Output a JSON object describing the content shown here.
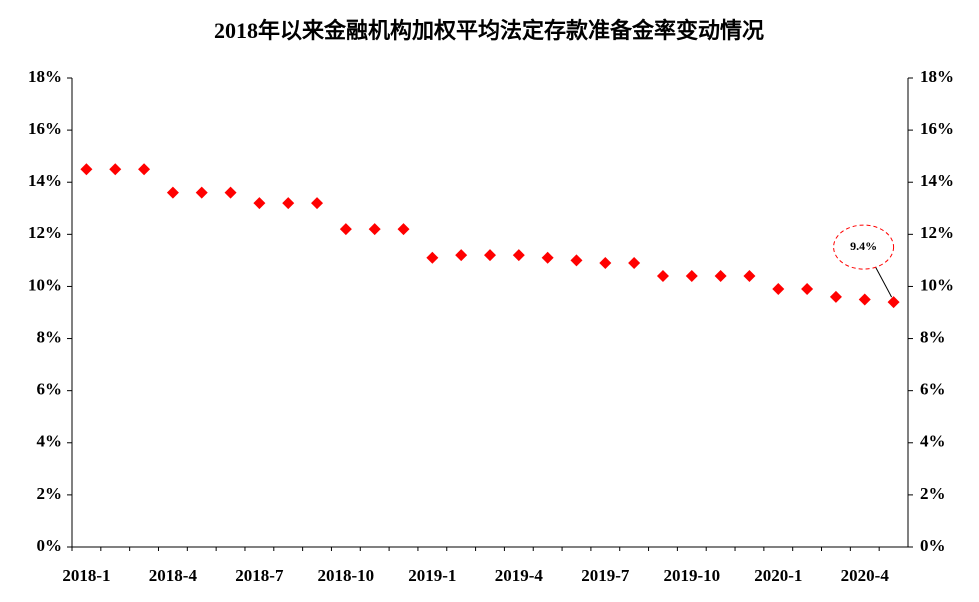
{
  "chart_data": {
    "type": "line",
    "title": "2018年以来金融机构加权平均法定存款准备金率变动情况",
    "categories": [
      "2018-1",
      null,
      null,
      "2018-4",
      null,
      null,
      "2018-7",
      null,
      null,
      "2018-10",
      null,
      null,
      "2019-1",
      null,
      null,
      "2019-4",
      null,
      null,
      "2019-7",
      null,
      null,
      "2019-10",
      null,
      null,
      "2020-1",
      null,
      null,
      "2020-4",
      null
    ],
    "series": [
      {
        "name": "加权平均法定存款准备金率",
        "color": "#0000ff",
        "marker_color": "#ff0000",
        "values": [
          14.5,
          14.5,
          14.5,
          13.6,
          13.6,
          13.6,
          13.2,
          13.2,
          13.2,
          12.2,
          12.2,
          12.2,
          11.1,
          11.2,
          11.2,
          11.2,
          11.1,
          11.0,
          10.9,
          10.9,
          10.4,
          10.4,
          10.4,
          10.4,
          9.9,
          9.9,
          9.6,
          9.5,
          9.4
        ]
      }
    ],
    "annotation": "9.4%",
    "ylim": [
      0,
      18
    ],
    "yticks": [
      {
        "value": 0,
        "label": "0%"
      },
      {
        "value": 2,
        "label": "2%"
      },
      {
        "value": 4,
        "label": "4%"
      },
      {
        "value": 6,
        "label": "6%"
      },
      {
        "value": 8,
        "label": "8%"
      },
      {
        "value": 10,
        "label": "10%"
      },
      {
        "value": 12,
        "label": "12%"
      },
      {
        "value": 14,
        "label": "14%"
      },
      {
        "value": 16,
        "label": "16%"
      },
      {
        "value": 18,
        "label": "18%"
      }
    ],
    "y2lim": [
      0,
      18
    ],
    "y2ticks": [
      {
        "value": 0,
        "label": "0%"
      },
      {
        "value": 2,
        "label": "2%"
      },
      {
        "value": 4,
        "label": "4%"
      },
      {
        "value": 6,
        "label": "6%"
      },
      {
        "value": 8,
        "label": "8%"
      },
      {
        "value": 10,
        "label": "10%"
      },
      {
        "value": 12,
        "label": "12%"
      },
      {
        "value": 14,
        "label": "14%"
      },
      {
        "value": 16,
        "label": "16%"
      },
      {
        "value": 18,
        "label": "18%"
      }
    ],
    "grid": false
  }
}
